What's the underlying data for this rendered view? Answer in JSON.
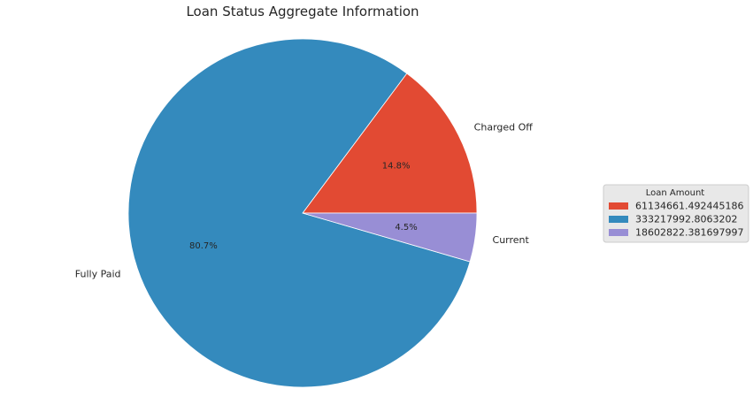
{
  "chart_data": {
    "type": "pie",
    "title": "Loan Status Aggregate Information",
    "categories": [
      "Charged Off",
      "Fully Paid",
      "Current"
    ],
    "values": [
      61134661.492445186,
      333217992.8063202,
      18602822.381697997
    ],
    "percent_labels": [
      "14.8%",
      "80.7%",
      "4.5%"
    ],
    "colors": [
      "#E24A33",
      "#348ABD",
      "#988ED5"
    ],
    "start_angle_deg": 0,
    "direction": "counterclockwise",
    "legend": {
      "title": "Loan Amount",
      "placement": "right",
      "entries": [
        "61134661.492445186",
        "333217992.8063202",
        "18602822.381697997"
      ]
    }
  }
}
